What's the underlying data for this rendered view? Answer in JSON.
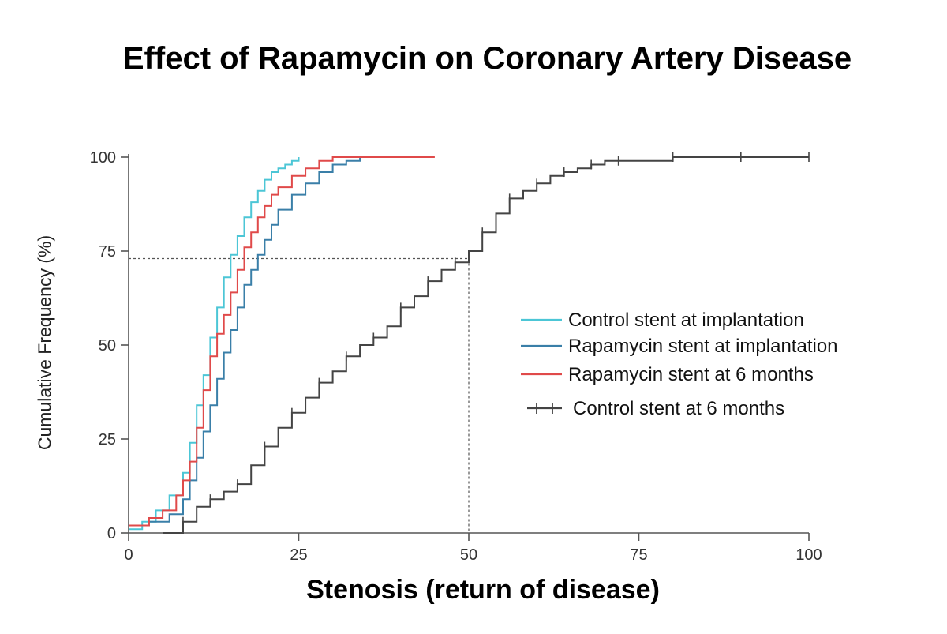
{
  "chart_data": {
    "type": "line",
    "title": "Effect of Rapamycin on Coronary Artery Disease",
    "xlabel": "Stenosis (return of disease)",
    "ylabel": "Cumulative Frequency (%)",
    "xlim": [
      0,
      100
    ],
    "ylim": [
      0,
      100
    ],
    "xticks": [
      0,
      25,
      50,
      75,
      100
    ],
    "yticks": [
      0,
      25,
      50,
      75,
      100
    ],
    "reference_lines": {
      "y": 73,
      "x": 50
    },
    "legend_position": "right",
    "series": [
      {
        "name": "Control stent at implantation",
        "color": "#4cc6d6",
        "marker": "none",
        "x": [
          0,
          2,
          4,
          6,
          8,
          9,
          10,
          11,
          12,
          13,
          14,
          15,
          16,
          17,
          18,
          19,
          20,
          21,
          22,
          23,
          24,
          25
        ],
        "y": [
          1,
          3,
          6,
          10,
          16,
          24,
          34,
          42,
          52,
          60,
          68,
          74,
          79,
          84,
          88,
          91,
          94,
          96,
          97,
          98,
          99,
          100
        ]
      },
      {
        "name": "Rapamycin stent at implantation",
        "color": "#3a7fa8",
        "marker": "none",
        "x": [
          0,
          3,
          6,
          8,
          9,
          10,
          11,
          12,
          13,
          14,
          15,
          16,
          17,
          18,
          19,
          20,
          21,
          22,
          24,
          26,
          28,
          30,
          32,
          34
        ],
        "y": [
          2,
          3,
          5,
          9,
          14,
          20,
          27,
          34,
          41,
          48,
          54,
          60,
          66,
          70,
          74,
          78,
          82,
          86,
          90,
          93,
          96,
          98,
          99,
          100
        ]
      },
      {
        "name": "Rapamycin stent at 6 months",
        "color": "#e04a4a",
        "marker": "none",
        "x": [
          0,
          3,
          5,
          7,
          8,
          9,
          10,
          11,
          12,
          13,
          14,
          15,
          16,
          17,
          18,
          19,
          20,
          21,
          22,
          24,
          26,
          28,
          30,
          35,
          40,
          45
        ],
        "y": [
          2,
          4,
          6,
          10,
          14,
          19,
          28,
          38,
          47,
          53,
          58,
          64,
          70,
          76,
          80,
          84,
          87,
          90,
          92,
          95,
          97,
          99,
          100,
          100,
          100,
          100
        ]
      },
      {
        "name": "Control stent at 6 months",
        "color": "#444444",
        "marker": "cross",
        "x": [
          5,
          8,
          10,
          12,
          14,
          16,
          18,
          20,
          22,
          24,
          26,
          28,
          30,
          32,
          34,
          36,
          38,
          40,
          42,
          44,
          46,
          48,
          50,
          52,
          54,
          56,
          58,
          60,
          62,
          64,
          66,
          68,
          70,
          72,
          75,
          80,
          85,
          90,
          95,
          100
        ],
        "y": [
          0,
          3,
          7,
          9,
          11,
          13,
          18,
          23,
          28,
          32,
          36,
          40,
          43,
          47,
          50,
          52,
          55,
          60,
          63,
          67,
          70,
          72,
          75,
          80,
          85,
          89,
          91,
          93,
          95,
          96,
          97,
          98,
          99,
          99,
          99,
          100,
          100,
          100,
          100,
          100
        ]
      }
    ]
  }
}
